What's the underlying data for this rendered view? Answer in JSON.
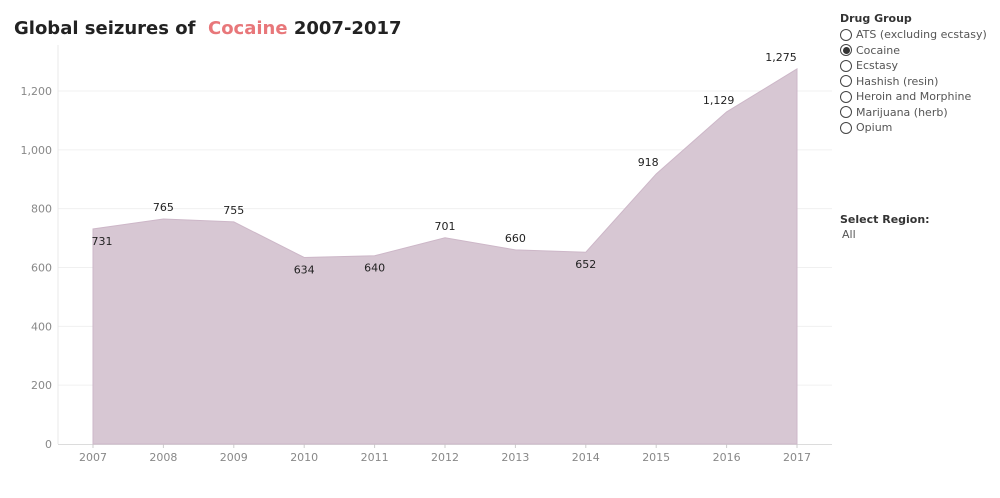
{
  "title": {
    "prefix": "Global seizures of",
    "drug": "Cocaine",
    "suffix": "2007-2017"
  },
  "colors": {
    "area_fill": "#d7c7d3",
    "area_stroke": "#cdb7c8",
    "highlight": "#e8777a"
  },
  "drug_group": {
    "label": "Drug Group",
    "options": [
      {
        "label": "ATS (excluding ecstasy)",
        "selected": false
      },
      {
        "label": "Cocaine",
        "selected": true
      },
      {
        "label": "Ecstasy",
        "selected": false
      },
      {
        "label": "Hashish (resin)",
        "selected": false
      },
      {
        "label": "Heroin and Morphine",
        "selected": false
      },
      {
        "label": "Marijuana (herb)",
        "selected": false
      },
      {
        "label": "Opium",
        "selected": false
      }
    ]
  },
  "region": {
    "label": "Select Region:",
    "value": "All"
  },
  "chart_data": {
    "type": "area",
    "x": [
      "2007",
      "2008",
      "2009",
      "2010",
      "2011",
      "2012",
      "2013",
      "2014",
      "2015",
      "2016",
      "2017"
    ],
    "values": [
      731,
      765,
      755,
      634,
      640,
      701,
      660,
      652,
      918,
      1129,
      1275
    ],
    "data_labels": [
      "731",
      "765",
      "755",
      "634",
      "640",
      "701",
      "660",
      "652",
      "918",
      "1,129",
      "1,275"
    ],
    "title": "Global seizures of Cocaine 2007-2017",
    "xlabel": "",
    "ylabel": "",
    "ylim": [
      0,
      1300
    ],
    "yticks": [
      0,
      200,
      400,
      600,
      800,
      1000,
      1200
    ],
    "ytick_labels": [
      "0",
      "200",
      "400",
      "600",
      "800",
      "1,000",
      "1,200"
    ],
    "grid": true,
    "legend": "none"
  }
}
